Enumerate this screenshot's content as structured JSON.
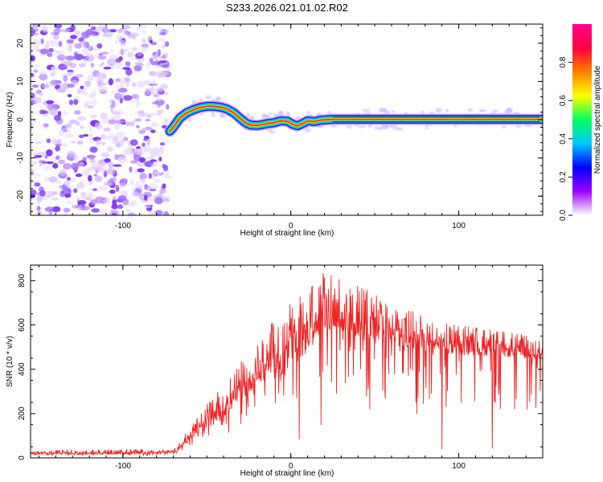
{
  "title": "S233.2026.021.01.02.R02",
  "chart_data": [
    {
      "type": "heatmap",
      "xlabel": "Height of straight line (km)",
      "ylabel": "Frequency (Hz)",
      "xlim": [
        -155,
        150
      ],
      "ylim": [
        -25,
        25
      ],
      "xticks": [
        -100,
        0,
        100
      ],
      "yticks": [
        -20,
        -10,
        0,
        10,
        20
      ],
      "grid": false,
      "noise_region_x": [
        -155,
        -73
      ],
      "ridge": {
        "x": [
          -72,
          -70,
          -66,
          -62,
          -58,
          -54,
          -50,
          -46,
          -42,
          -38,
          -34,
          -30,
          -27,
          -24,
          -20,
          -17,
          -14,
          -10,
          -6,
          -2,
          1,
          4,
          7,
          10,
          14,
          18,
          22,
          25,
          30,
          40,
          60,
          80,
          100,
          120,
          150
        ],
        "freq": [
          -3,
          -2,
          0.5,
          1.8,
          2.6,
          3.2,
          3.5,
          3.5,
          3.3,
          2.8,
          1.8,
          0.3,
          -0.8,
          -1.4,
          -1.5,
          -1.3,
          -1.0,
          -0.8,
          -0.3,
          -0.4,
          -1.2,
          -1.6,
          -1.0,
          -0.3,
          -0.5,
          -0.1,
          0.0,
          0.1,
          0.1,
          0.1,
          0.1,
          0.1,
          0.1,
          0.1,
          0.1
        ]
      },
      "colorbar": {
        "label": "Normalized spectral amplitude",
        "range": [
          0,
          1
        ],
        "ticks": [
          "0.0",
          "0.2",
          "0.4",
          "0.6",
          "0.8"
        ],
        "tick_values": [
          0,
          0.2,
          0.4,
          0.6,
          0.8
        ],
        "stops": [
          "#ffffff",
          "#a000ff",
          "#0000ff",
          "#00c8ff",
          "#00ff60",
          "#ffff00",
          "#ff8000",
          "#ff0040",
          "#ff0090"
        ]
      }
    },
    {
      "type": "line",
      "xlabel": "Height of straight line (km)",
      "ylabel": "SNR (10 * v/v)",
      "xlim": [
        -155,
        150
      ],
      "ylim": [
        0,
        870
      ],
      "xticks": [
        -100,
        0,
        100
      ],
      "yticks": [
        0,
        200,
        400,
        600,
        800
      ],
      "color": "#ee2222",
      "grid": false,
      "envelope": {
        "x": [
          -155,
          -90,
          -75,
          -68,
          -60,
          -50,
          -40,
          -30,
          -20,
          -10,
          0,
          10,
          20,
          25,
          30,
          40,
          60,
          80,
          100,
          120,
          150
        ],
        "mean": [
          20,
          22,
          25,
          30,
          100,
          150,
          220,
          300,
          380,
          420,
          470,
          560,
          620,
          650,
          640,
          600,
          560,
          520,
          500,
          490,
          470
        ],
        "peak": [
          35,
          40,
          40,
          50,
          140,
          240,
          330,
          430,
          530,
          620,
          700,
          760,
          850,
          870,
          830,
          780,
          700,
          640,
          600,
          580,
          540
        ]
      },
      "spikes": [
        {
          "x": 5,
          "y": 85
        },
        {
          "x": 47,
          "y": 220
        },
        {
          "x": 90,
          "y": 40
        },
        {
          "x": 120,
          "y": 45
        },
        {
          "x": 18,
          "y": 150
        },
        {
          "x": 75,
          "y": 200
        }
      ]
    }
  ]
}
